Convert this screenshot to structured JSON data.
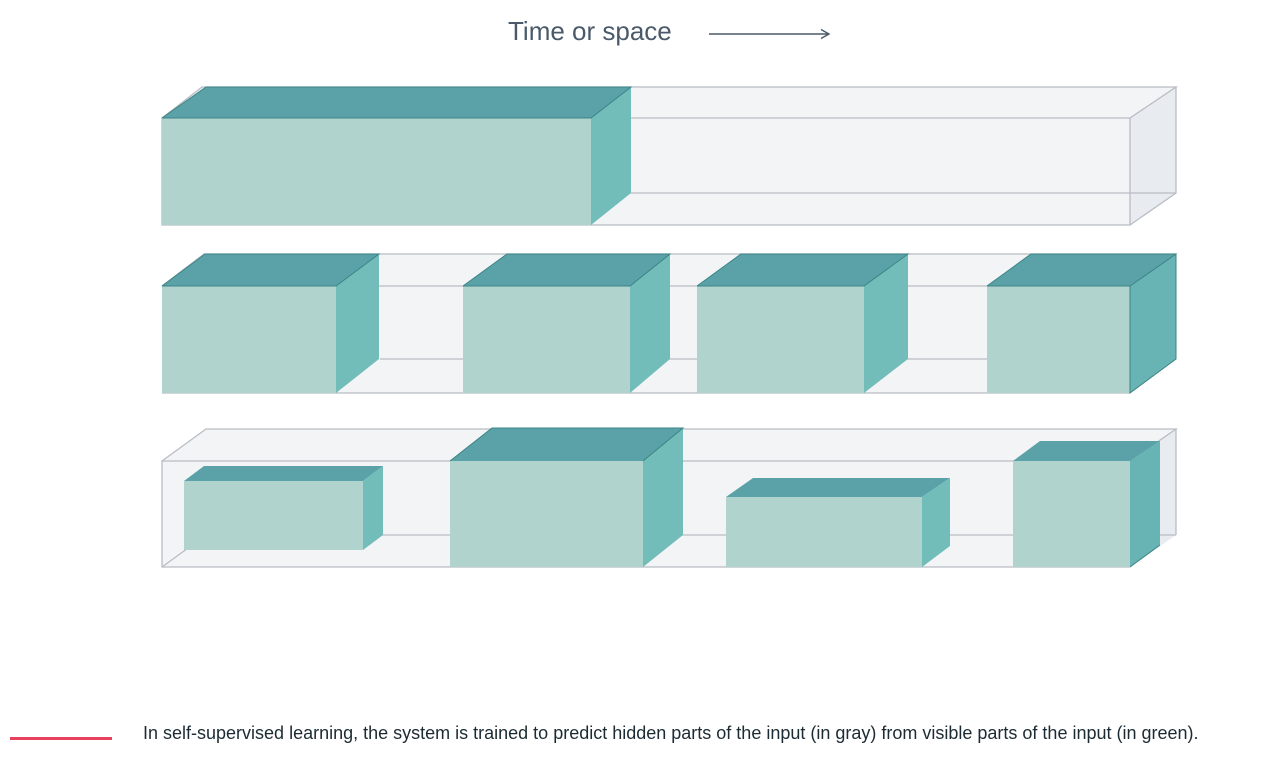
{
  "diagram": {
    "axis_title": "Time or space",
    "colors": {
      "visible_front": "#b0d3cd",
      "visible_top": "#5aa2a7",
      "visible_side": "#72bdba",
      "hidden_fill": "#f2f4f6",
      "hidden_side": "#e8ecf0",
      "outline": "#b8bcc4",
      "arrow": "#4a5a6a"
    },
    "rows": [
      {
        "name": "contiguous-visible-prefix",
        "visible_segments": 1
      },
      {
        "name": "interleaved-visible-blocks",
        "visible_segments": 4
      },
      {
        "name": "irregular-visible-blocks",
        "visible_segments": 4
      }
    ]
  },
  "caption": {
    "text": "In self-supervised learning, the system is trained to predict hidden parts of the input (in gray) from visible parts of the input (in green).",
    "accent_color": "#e8415f"
  }
}
